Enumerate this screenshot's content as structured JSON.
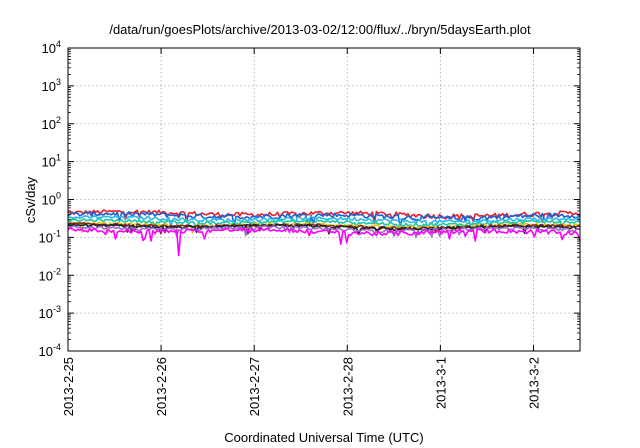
{
  "chart_data": {
    "type": "line",
    "title": "/data/run/goesPlots/archive/2013-03-02/12:00/flux/../bryn/5daysEarth.plot",
    "xlabel": "Coordinated Universal Time (UTC)",
    "ylabel": "cSv/day",
    "yscale": "log",
    "ylim": [
      0.0001,
      10000
    ],
    "xlim": [
      "2013-02-25 00:00",
      "2013-03-02 12:00"
    ],
    "grid": true,
    "legend": "none",
    "x_ticks": [
      "2013-2-25",
      "2013-2-26",
      "2013-2-27",
      "2013-2-28",
      "2013-3-1",
      "2013-3-2"
    ],
    "y_ticks": [
      {
        "base": "10",
        "exp": "-4"
      },
      {
        "base": "10",
        "exp": "-3"
      },
      {
        "base": "10",
        "exp": "-2"
      },
      {
        "base": "10",
        "exp": "-1"
      },
      {
        "base": "10",
        "exp": "0"
      },
      {
        "base": "10",
        "exp": "1"
      },
      {
        "base": "10",
        "exp": "2"
      },
      {
        "base": "10",
        "exp": "3"
      },
      {
        "base": "10",
        "exp": "4"
      }
    ],
    "series": [
      {
        "color": "#e8202a",
        "level": 0.42,
        "amp": 0.14
      },
      {
        "color": "#1f5fd6",
        "level": 0.37,
        "amp": 0.15
      },
      {
        "color": "#2ab8ec",
        "level": 0.3,
        "amp": 0.1
      },
      {
        "color": "#18c8a8",
        "level": 0.25,
        "amp": 0.09
      },
      {
        "color": "#e8c418",
        "level": 0.21,
        "amp": 0.08
      },
      {
        "color": "#7a2a2a",
        "level": 0.2,
        "amp": 0.08
      },
      {
        "color": "#222222",
        "level": 0.19,
        "amp": 0.08
      },
      {
        "color": "#9a6ad0",
        "level": 0.17,
        "amp": 0.09
      },
      {
        "color": "#ff00ff",
        "level": 0.145,
        "amp": 0.13
      }
    ]
  }
}
